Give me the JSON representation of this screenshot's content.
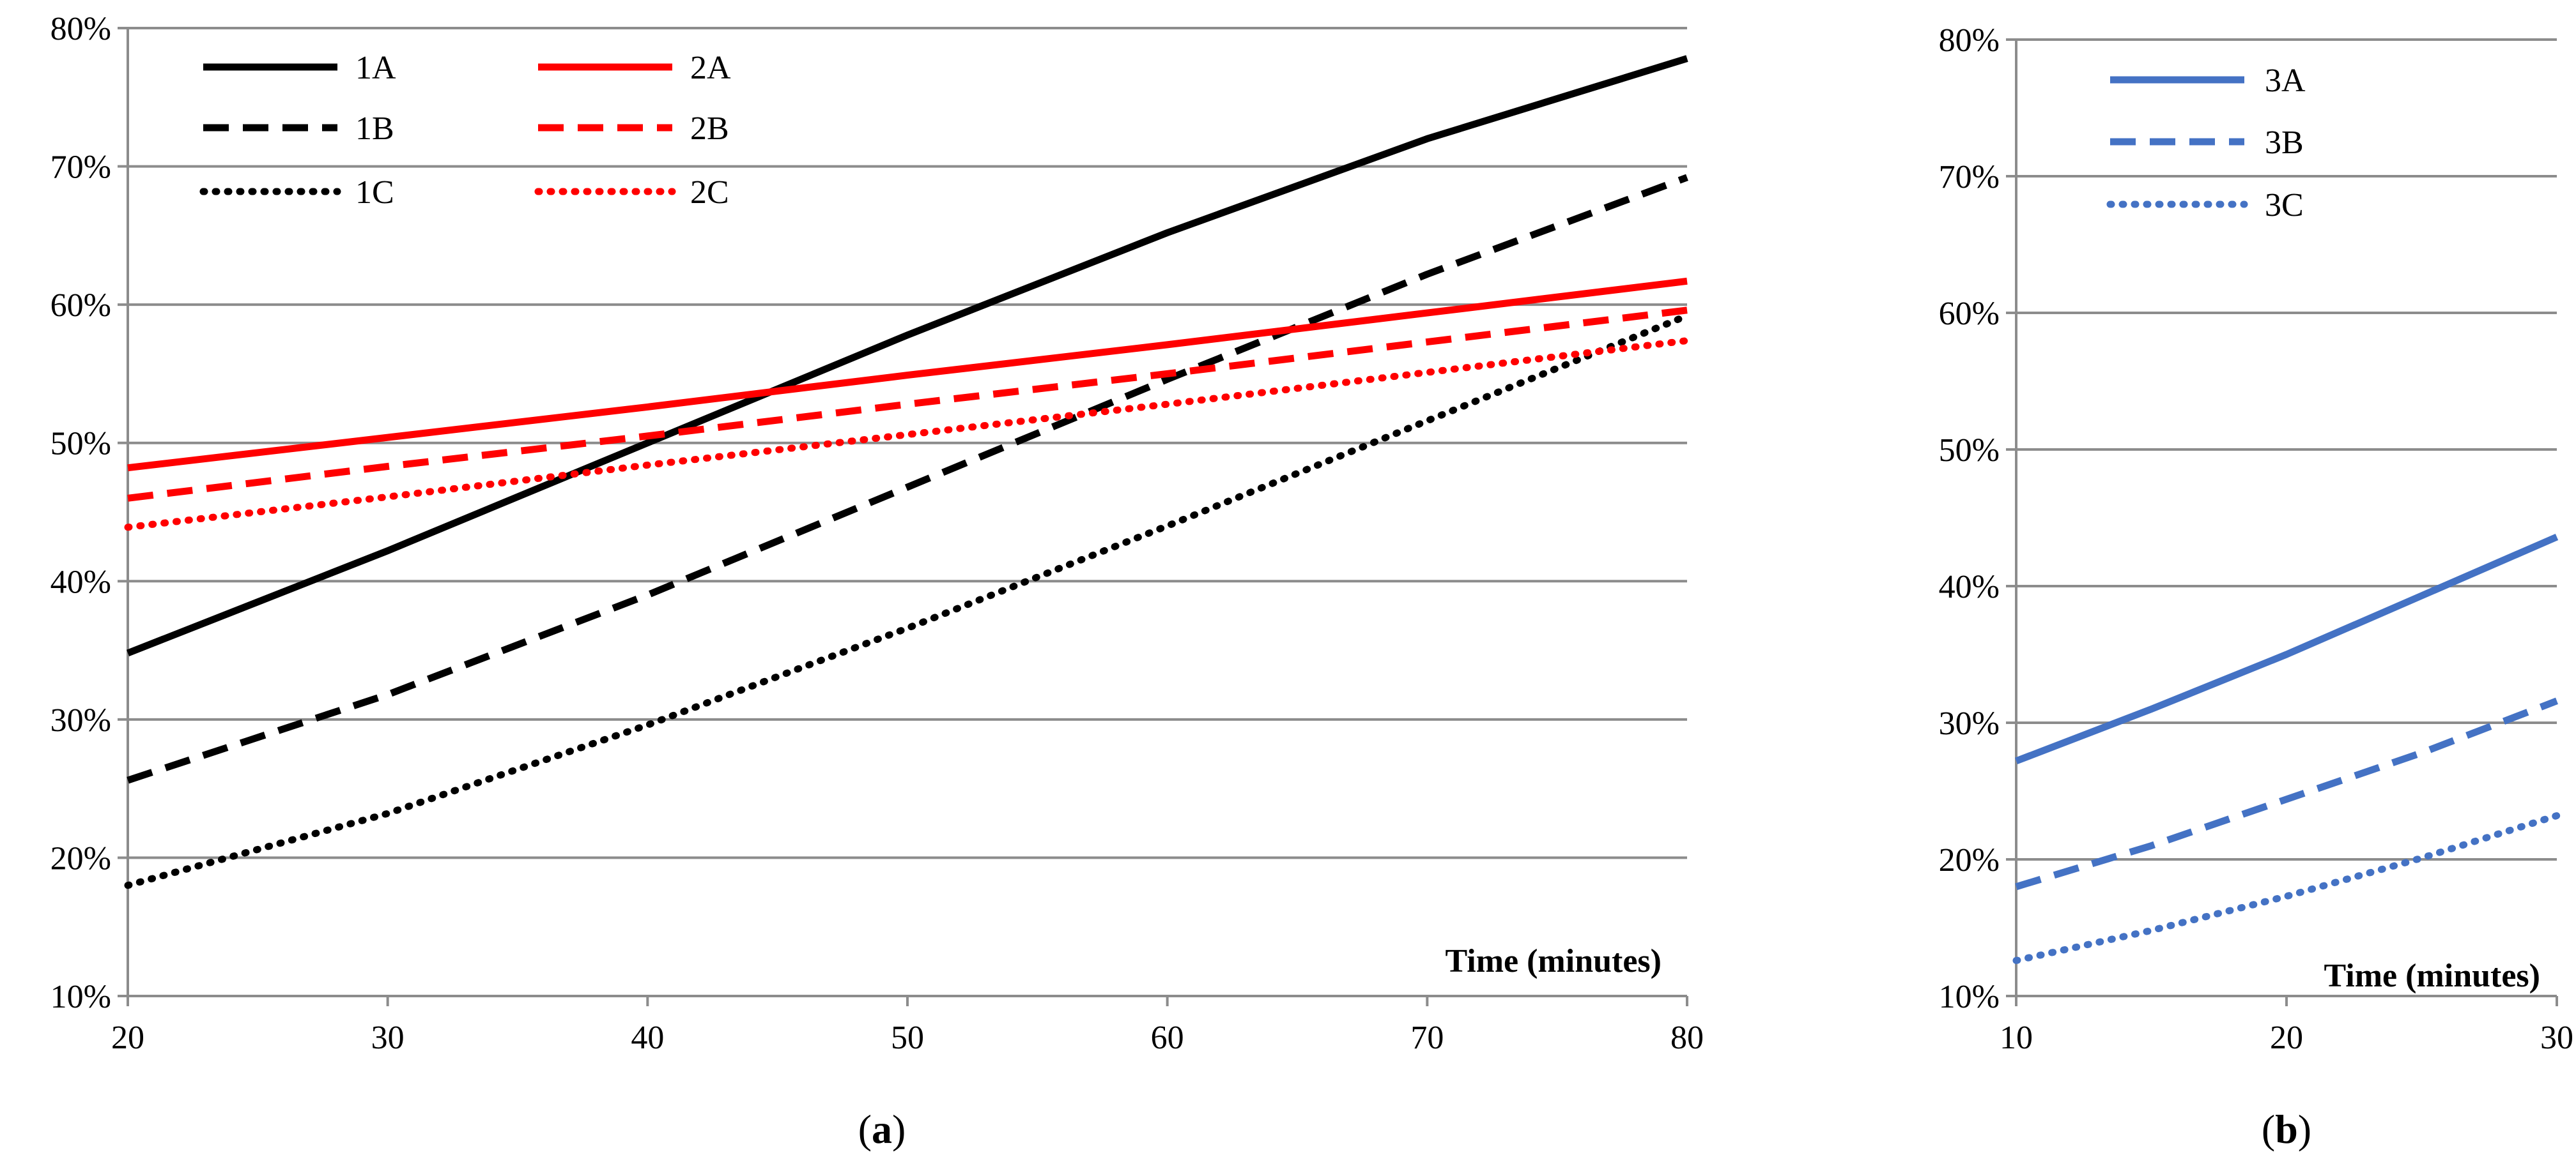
{
  "chart_data": [
    {
      "panel_label": "a",
      "type": "line",
      "title": "",
      "xlabel": "Time (minutes)",
      "ylabel": "",
      "xlim": [
        20,
        80
      ],
      "ylim": [
        10,
        80
      ],
      "x_ticks": [
        20,
        30,
        40,
        50,
        60,
        70,
        80
      ],
      "y_ticks": [
        10,
        20,
        30,
        40,
        50,
        60,
        70,
        80
      ],
      "y_tick_labels": [
        "10%",
        "20%",
        "30%",
        "40%",
        "50%",
        "60%",
        "70%",
        "80%"
      ],
      "grid": "horizontal",
      "legend_position": "top-left",
      "series": [
        {
          "name": "1A",
          "color": "#000000",
          "style": "solid",
          "x": [
            20,
            30,
            40,
            50,
            60,
            70,
            80
          ],
          "values": [
            34.8,
            42.2,
            50.0,
            57.8,
            65.2,
            72.0,
            77.8
          ]
        },
        {
          "name": "1B",
          "color": "#000000",
          "style": "dashed",
          "x": [
            20,
            30,
            40,
            50,
            60,
            70,
            80
          ],
          "values": [
            25.6,
            31.8,
            39.0,
            46.8,
            54.6,
            62.2,
            69.2
          ]
        },
        {
          "name": "1C",
          "color": "#000000",
          "style": "dotted",
          "x": [
            20,
            30,
            40,
            50,
            60,
            70,
            80
          ],
          "values": [
            18.0,
            23.2,
            29.6,
            36.6,
            44.0,
            51.6,
            59.2
          ]
        },
        {
          "name": "2A",
          "color": "#ff0000",
          "style": "solid",
          "x": [
            20,
            30,
            40,
            50,
            60,
            70,
            80
          ],
          "values": [
            48.2,
            50.4,
            52.6,
            54.9,
            57.1,
            59.4,
            61.7
          ]
        },
        {
          "name": "2B",
          "color": "#ff0000",
          "style": "dashed",
          "x": [
            20,
            30,
            40,
            50,
            60,
            70,
            80
          ],
          "values": [
            46.0,
            48.3,
            50.5,
            52.8,
            55.0,
            57.3,
            59.6
          ]
        },
        {
          "name": "2C",
          "color": "#ff0000",
          "style": "dotted",
          "x": [
            20,
            30,
            40,
            50,
            60,
            70,
            80
          ],
          "values": [
            43.9,
            46.1,
            48.4,
            50.6,
            52.8,
            55.1,
            57.4
          ]
        }
      ]
    },
    {
      "panel_label": "b",
      "type": "line",
      "title": "",
      "xlabel": "Time (minutes)",
      "ylabel": "",
      "xlim": [
        10,
        30
      ],
      "ylim": [
        10,
        80
      ],
      "x_ticks": [
        10,
        20,
        30
      ],
      "y_ticks": [
        10,
        20,
        30,
        40,
        50,
        60,
        70,
        80
      ],
      "y_tick_labels": [
        "10%",
        "20%",
        "30%",
        "40%",
        "50%",
        "60%",
        "70%",
        "80%"
      ],
      "grid": "horizontal",
      "legend_position": "top-left",
      "series": [
        {
          "name": "3A",
          "color": "#4472c4",
          "style": "solid",
          "x": [
            10,
            15,
            20,
            25,
            30
          ],
          "values": [
            27.2,
            31.0,
            35.0,
            39.3,
            43.6
          ]
        },
        {
          "name": "3B",
          "color": "#4472c4",
          "style": "dashed",
          "x": [
            10,
            15,
            20,
            25,
            30
          ],
          "values": [
            18.0,
            21.0,
            24.4,
            27.8,
            31.6
          ]
        },
        {
          "name": "3C",
          "color": "#4472c4",
          "style": "dotted",
          "x": [
            10,
            15,
            20,
            25,
            30
          ],
          "values": [
            12.6,
            14.8,
            17.3,
            20.1,
            23.2
          ]
        }
      ]
    }
  ]
}
